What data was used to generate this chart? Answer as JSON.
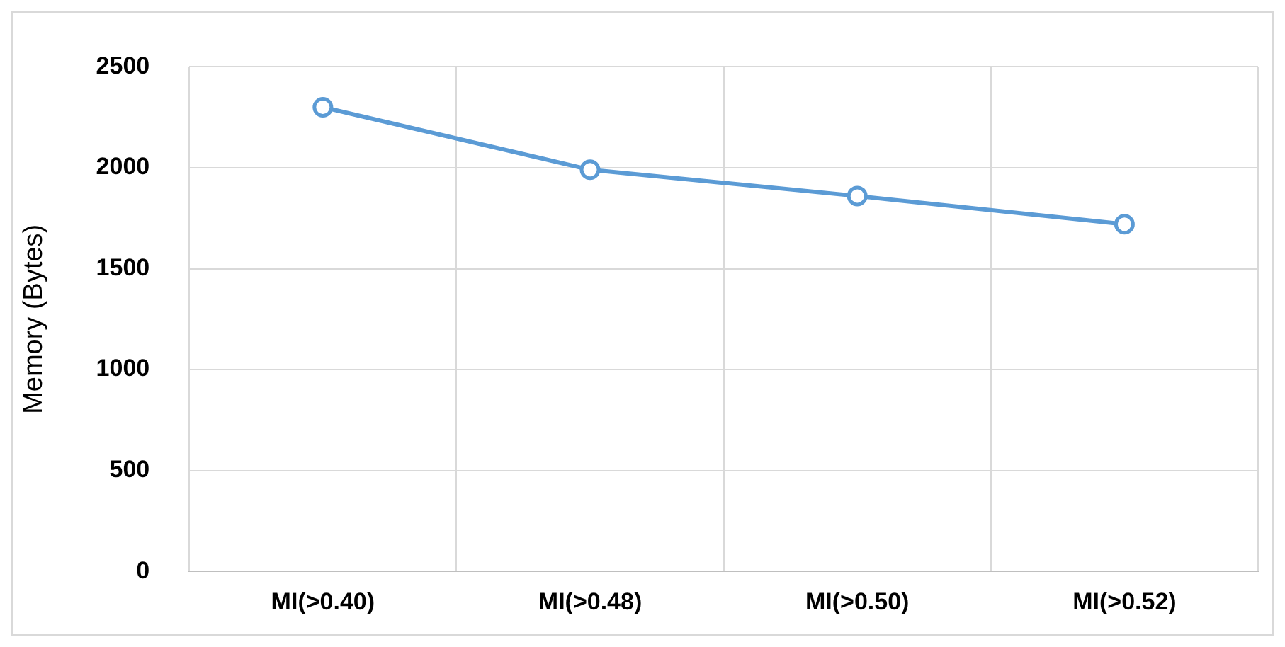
{
  "chart_data": {
    "type": "line",
    "ylabel": "Memory (Bytes)",
    "categories": [
      "MI(>0.40)",
      "MI(>0.48)",
      "MI(>0.50)",
      "MI(>0.52)"
    ],
    "series": [
      {
        "color": "#5b9bd5",
        "values": [
          2300,
          1990,
          1860,
          1720
        ]
      }
    ],
    "ylim": [
      0,
      2500
    ],
    "yticks": [
      0,
      500,
      1000,
      1500,
      2000,
      2500
    ],
    "grid": true,
    "legend": false,
    "marker": "circle",
    "line_style": "solid"
  }
}
